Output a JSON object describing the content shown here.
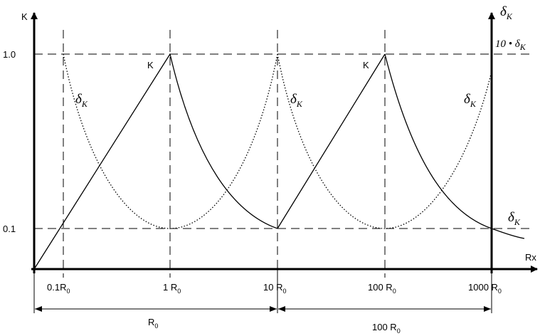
{
  "axes": {
    "y_left_label": "K",
    "y_right_label_main": "δ",
    "y_right_label_sub": "K",
    "x_label": "Rx",
    "y_ticks": [
      "1.0",
      "0.1"
    ],
    "x_ticks": [
      {
        "main": "0.1R",
        "sub": "0"
      },
      {
        "main": "1 R",
        "sub": "0"
      },
      {
        "main": "10 R",
        "sub": "0"
      },
      {
        "main": "100 R",
        "sub": "0"
      },
      {
        "main": "1000 R",
        "sub": "0"
      }
    ]
  },
  "curve_labels": {
    "k1": "K",
    "k2": "K",
    "delta": {
      "main": "δ",
      "sub": "K"
    },
    "ten_delta": {
      "prefix": "10 • δ",
      "sub": "K"
    }
  },
  "ranges": [
    {
      "main": "R",
      "sub": "0"
    },
    {
      "main": "100 R",
      "sub": "0"
    }
  ],
  "colors": {
    "line": "#000000",
    "background": "#ffffff"
  }
}
